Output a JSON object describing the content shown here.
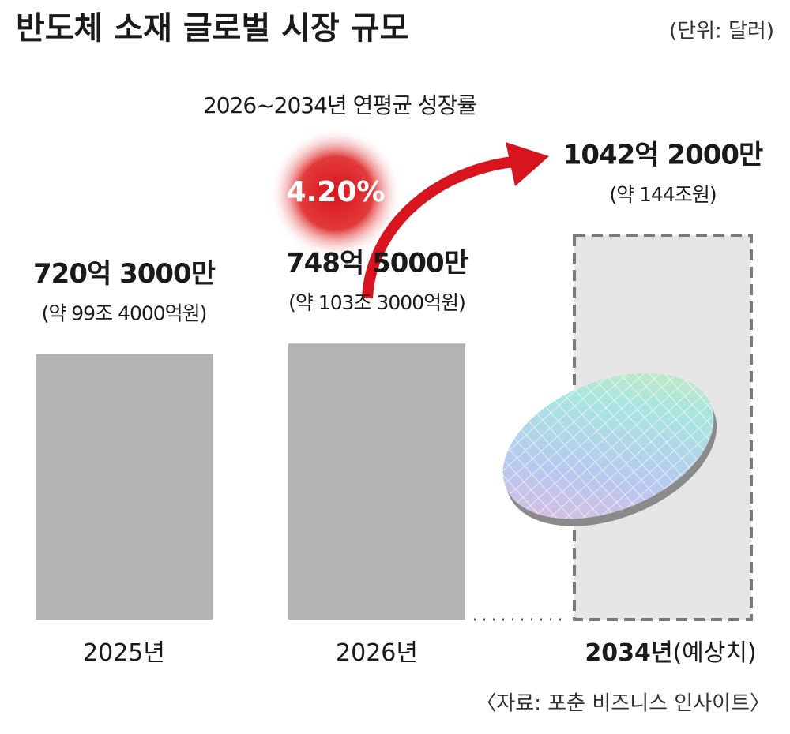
{
  "chart_data": {
    "type": "bar",
    "title": "반도체 소재 글로벌 시장 규모",
    "unit": "(단위: 달러)",
    "categories": [
      "2025년",
      "2026년",
      "2034년"
    ],
    "category_notes": [
      null,
      null,
      "(예상치)"
    ],
    "values": [
      720.3,
      748.5,
      1042.2
    ],
    "value_labels": [
      "720억 3000만",
      "748억 5000만",
      "1042억 2000만"
    ],
    "sub_labels": [
      "(약 99조 4000억원)",
      "(약 103조 3000억원)",
      "(약 144조원)"
    ],
    "colors": [
      "#b3b3b3",
      "#b3b3b3",
      "#e6e6e6"
    ],
    "projected": [
      false,
      false,
      true
    ],
    "growth": {
      "label": "2026~2034년 연평균 성장률",
      "value": 4.2,
      "value_label": "4.20%"
    },
    "source": "〈자료: 포춘 비즈니스 인사이트〉"
  }
}
